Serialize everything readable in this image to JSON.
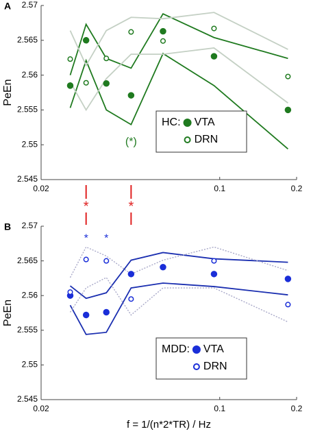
{
  "chart_data": [
    {
      "type": "line",
      "panel_label": "A",
      "ylabel": "PeEn",
      "legend_title": "HC:",
      "log_x": true,
      "x": [
        0.026,
        0.03,
        0.036,
        0.045,
        0.06,
        0.095,
        0.185
      ],
      "xlim": [
        0.02,
        0.2
      ],
      "xticks": [
        0.02,
        0.1,
        0.2
      ],
      "ylim": [
        2.545,
        2.57
      ],
      "yticks": [
        2.545,
        2.55,
        2.555,
        2.56,
        2.565,
        2.57
      ],
      "series": [
        {
          "name": "VTA",
          "color": "#1f7a1f",
          "marker": "filled",
          "values": [
            2.5585,
            2.565,
            2.5588,
            2.5571,
            2.5663,
            2.5627,
            2.555
          ]
        },
        {
          "name": "DRN",
          "color": "#1f7a1f",
          "marker": "open",
          "values": [
            2.5623,
            2.5589,
            2.5624,
            2.5662,
            2.5649,
            2.5667,
            2.5598
          ]
        }
      ],
      "lines": [
        {
          "color": "#1f7a1f",
          "dashed": false,
          "values": [
            2.56,
            2.5673,
            2.5624,
            2.561,
            2.5688,
            2.5654,
            2.5624
          ]
        },
        {
          "color": "#1f7a1f",
          "dashed": false,
          "values": [
            2.5553,
            2.5621,
            2.555,
            2.5529,
            2.5631,
            2.5585,
            2.5494
          ]
        },
        {
          "color": "#c4d0c4",
          "dashed": false,
          "values": [
            2.5664,
            2.5614,
            2.5664,
            2.5683,
            2.5681,
            2.569,
            2.5637
          ]
        },
        {
          "color": "#c4d0c4",
          "dashed": false,
          "values": [
            2.559,
            2.555,
            2.5595,
            2.563,
            2.563,
            2.5639,
            2.556
          ]
        }
      ],
      "annotations": [
        {
          "text": "(*)",
          "x": 0.045,
          "y": 2.5504,
          "color": "#1f7a1f"
        }
      ],
      "comparison_markers": {
        "text": "*",
        "color": "#e02020",
        "x": [
          0.03,
          0.045
        ]
      }
    },
    {
      "type": "line",
      "panel_label": "B",
      "ylabel": "PeEn",
      "xlabel": "f = 1/(n*2*TR) / Hz",
      "legend_title": "MDD:",
      "log_x": true,
      "x": [
        0.026,
        0.03,
        0.036,
        0.045,
        0.06,
        0.095,
        0.185
      ],
      "xlim": [
        0.02,
        0.2
      ],
      "xticks": [
        0.02,
        0.1,
        0.2
      ],
      "ylim": [
        2.545,
        2.57
      ],
      "yticks": [
        2.545,
        2.55,
        2.555,
        2.56,
        2.565,
        2.57
      ],
      "series": [
        {
          "name": "VTA",
          "color": "#1a2ed8",
          "marker": "filled",
          "values": [
            2.56,
            2.5572,
            2.5576,
            2.5631,
            2.5641,
            2.5631,
            2.5624
          ]
        },
        {
          "name": "DRN",
          "color": "#1a2ed8",
          "marker": "open",
          "values": [
            2.5605,
            2.5652,
            2.565,
            2.5595,
            null,
            2.565,
            2.5587
          ]
        }
      ],
      "lines": [
        {
          "color": "#1a2eb0",
          "dashed": false,
          "values": [
            2.5614,
            2.5596,
            2.5604,
            2.5651,
            2.5662,
            2.5653,
            2.5648
          ]
        },
        {
          "color": "#1a2eb0",
          "dashed": false,
          "values": [
            2.5586,
            2.5544,
            2.5547,
            2.5611,
            2.5618,
            2.5613,
            2.5601
          ]
        },
        {
          "color": "#a8a8c8",
          "dashed": true,
          "values": [
            2.5626,
            2.567,
            2.5657,
            2.5631,
            2.5651,
            2.567,
            2.5636
          ]
        },
        {
          "color": "#a8a8c8",
          "dashed": true,
          "values": [
            2.5576,
            2.5611,
            2.5626,
            2.5572,
            2.5611,
            2.5611,
            2.5562
          ]
        }
      ],
      "annotations": [
        {
          "text": "*",
          "x": 0.03,
          "y": 2.5682,
          "color": "#1a2ed8"
        },
        {
          "text": "*",
          "x": 0.036,
          "y": 2.5682,
          "color": "#1a2ed8"
        }
      ]
    }
  ]
}
